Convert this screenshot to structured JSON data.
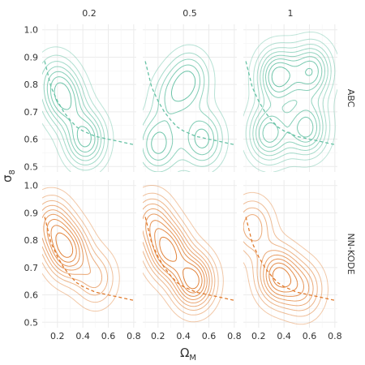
{
  "chart_data": {
    "type": "contour",
    "xlabel_main": "Ω",
    "xlabel_sub": "M",
    "ylabel_main": "σ",
    "ylabel_sub": "8",
    "column_labels": [
      "0.2",
      "0.5",
      "1"
    ],
    "row_labels": [
      "ABC",
      "NN-KODE"
    ],
    "xlim": [
      0.08,
      0.82
    ],
    "ylim": [
      0.48,
      1.02
    ],
    "x_ticks": [
      "0.2",
      "0.4",
      "0.6",
      "0.8"
    ],
    "x_tick_values": [
      0.2,
      0.4,
      0.6,
      0.8
    ],
    "y_ticks": [
      "0.5",
      "0.6",
      "0.7",
      "0.8",
      "0.9",
      "1.0"
    ],
    "y_tick_values": [
      0.5,
      0.6,
      0.7,
      0.8,
      0.9,
      1.0
    ],
    "grid": true,
    "row_colors": [
      "#66c2a5",
      "#e07b2e"
    ],
    "reference_curve": {
      "style": "dashed",
      "x": [
        0.1,
        0.15,
        0.2,
        0.25,
        0.3,
        0.35,
        0.4,
        0.45,
        0.5,
        0.55,
        0.6,
        0.65,
        0.7,
        0.75,
        0.8
      ],
      "y": [
        0.885,
        0.79,
        0.74,
        0.7,
        0.67,
        0.645,
        0.63,
        0.62,
        0.61,
        0.605,
        0.6,
        0.595,
        0.59,
        0.585,
        0.58
      ]
    },
    "panels": [
      {
        "row": "ABC",
        "col": "0.2",
        "peaks": [
          [
            0.42,
            0.6,
            1.0
          ],
          [
            0.26,
            0.74,
            0.8
          ],
          [
            0.18,
            0.82,
            0.5
          ]
        ],
        "levels": 7
      },
      {
        "row": "ABC",
        "col": "0.5",
        "peaks": [
          [
            0.2,
            0.58,
            0.8
          ],
          [
            0.55,
            0.6,
            0.8
          ],
          [
            0.45,
            0.82,
            0.7
          ],
          [
            0.3,
            0.75,
            0.5
          ]
        ],
        "levels": 5
      },
      {
        "row": "ABC",
        "col": "1",
        "peaks": [
          [
            0.35,
            0.83,
            0.9
          ],
          [
            0.62,
            0.85,
            0.8
          ],
          [
            0.28,
            0.62,
            0.8
          ],
          [
            0.58,
            0.64,
            0.8
          ]
        ],
        "levels": 8
      },
      {
        "row": "NN-KODE",
        "col": "0.2",
        "peaks": [
          [
            0.28,
            0.76,
            1.0
          ],
          [
            0.15,
            0.86,
            0.7
          ],
          [
            0.5,
            0.66,
            0.5
          ]
        ],
        "levels": 9
      },
      {
        "row": "NN-KODE",
        "col": "0.5",
        "peaks": [
          [
            0.28,
            0.76,
            0.9
          ],
          [
            0.48,
            0.65,
            1.0
          ],
          [
            0.15,
            0.87,
            0.6
          ]
        ],
        "levels": 9
      },
      {
        "row": "NN-KODE",
        "col": "1",
        "peaks": [
          [
            0.35,
            0.67,
            1.0
          ],
          [
            0.15,
            0.85,
            0.6
          ],
          [
            0.55,
            0.62,
            0.6
          ]
        ],
        "levels": 8
      }
    ]
  }
}
